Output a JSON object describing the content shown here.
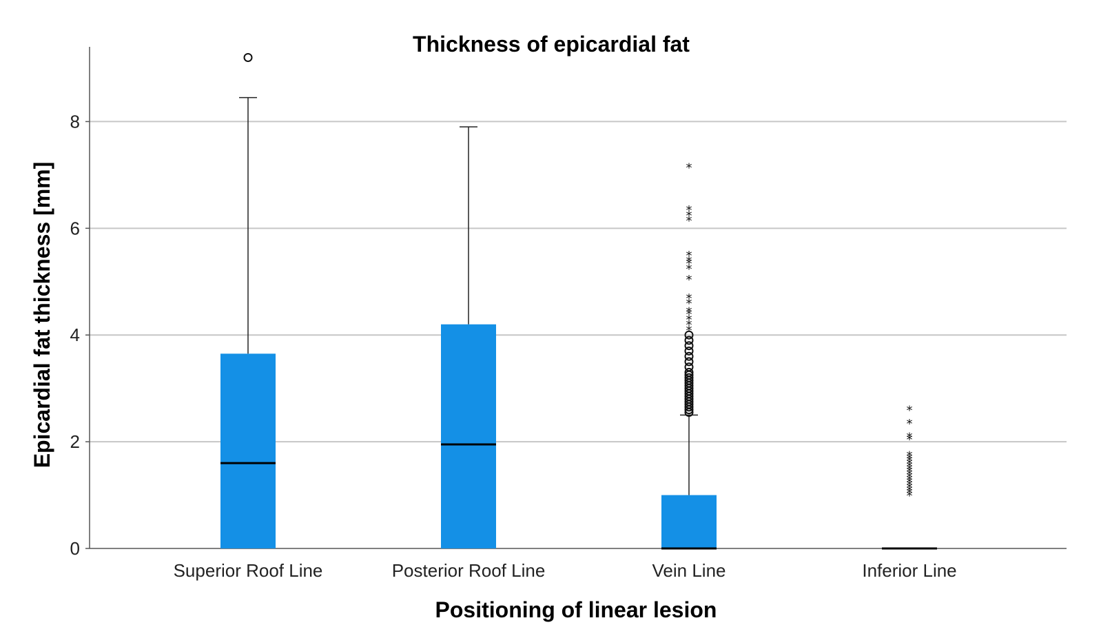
{
  "chart_data": {
    "type": "box",
    "title": "Thickness of epicardial fat",
    "xlabel": "Positioning of linear lesion",
    "ylabel": "Epicardial fat thickness [mm]",
    "ylim": [
      0,
      9.4
    ],
    "yticks": [
      0,
      2,
      4,
      6,
      8
    ],
    "grid": true,
    "box_color": "#1490e6",
    "categories": [
      "Superior Roof Line",
      "Posterior Roof Line",
      "Vein Line",
      "Inferior Line"
    ],
    "boxes": [
      {
        "category": "Superior Roof Line",
        "min": 0,
        "q1": 0,
        "median": 1.6,
        "q3": 3.65,
        "max": 8.45,
        "outliers_circle": [
          9.2
        ],
        "outliers_star": []
      },
      {
        "category": "Posterior Roof Line",
        "min": 0,
        "q1": 0,
        "median": 1.95,
        "q3": 4.2,
        "max": 7.9,
        "outliers_circle": [],
        "outliers_star": []
      },
      {
        "category": "Vein Line",
        "min": 0,
        "q1": 0,
        "median": 0,
        "q3": 1.0,
        "max": 2.5,
        "outliers_circle": [
          2.55,
          2.6,
          2.65,
          2.7,
          2.75,
          2.8,
          2.85,
          2.9,
          2.95,
          3.0,
          3.05,
          3.1,
          3.15,
          3.2,
          3.25,
          3.3,
          3.4,
          3.5,
          3.6,
          3.7,
          3.8,
          3.9,
          4.0
        ],
        "outliers_star": [
          4.1,
          4.2,
          4.3,
          4.4,
          4.45,
          4.6,
          4.7,
          5.05,
          5.25,
          5.35,
          5.4,
          5.5,
          6.15,
          6.25,
          6.35,
          7.15
        ]
      },
      {
        "category": "Inferior Line",
        "min": 0,
        "q1": 0,
        "median": 0,
        "q3": 0,
        "max": 0,
        "outliers_circle": [],
        "outliers_star": [
          1.0,
          1.05,
          1.1,
          1.15,
          1.2,
          1.25,
          1.3,
          1.35,
          1.4,
          1.45,
          1.5,
          1.55,
          1.6,
          1.65,
          1.7,
          1.75,
          2.05,
          2.1,
          2.35,
          2.6
        ]
      }
    ]
  }
}
